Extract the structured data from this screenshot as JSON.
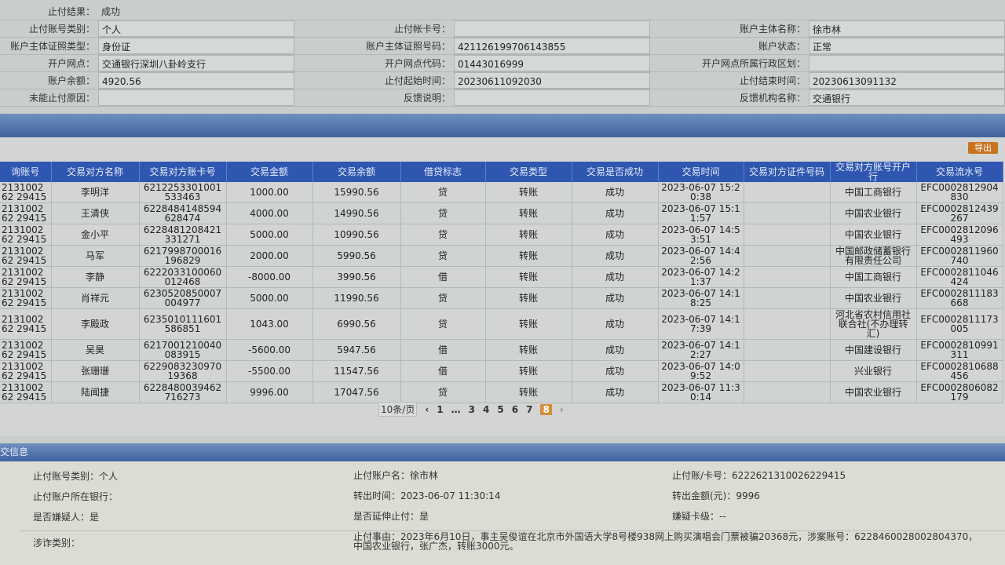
{
  "info": {
    "result_label": "止付结果：",
    "result_value": "成功",
    "rows": [
      [
        {
          "l": "止付账号类别：",
          "v": "个人"
        },
        {
          "l": "止付帐卡号：",
          "v": ""
        },
        {
          "l": "账户主体名称：",
          "v": "徐市林"
        }
      ],
      [
        {
          "l": "账户主体证照类型：",
          "v": "身份证"
        },
        {
          "l": "账户主体证照号码：",
          "v": "421126199706143855"
        },
        {
          "l": "账户状态：",
          "v": "正常"
        }
      ],
      [
        {
          "l": "开户网点：",
          "v": "交通银行深圳八卦岭支行"
        },
        {
          "l": "开户网点代码：",
          "v": "01443016999"
        },
        {
          "l": "开户网点所属行政区划：",
          "v": ""
        }
      ],
      [
        {
          "l": "账户余额：",
          "v": "4920.56"
        },
        {
          "l": "止付起始时间：",
          "v": "20230611092030"
        },
        {
          "l": "止付结束时间：",
          "v": "20230613091132"
        }
      ],
      [
        {
          "l": "未能止付原因：",
          "v": ""
        },
        {
          "l": "反馈说明：",
          "v": ""
        },
        {
          "l": "反馈机构名称：",
          "v": "交通银行"
        }
      ]
    ]
  },
  "export_label": "导出",
  "table": {
    "headers": [
      "询账号",
      "交易对方名称",
      "交易对方账卡号",
      "交易金额",
      "交易余额",
      "借贷标志",
      "交易类型",
      "交易是否成功",
      "交易时间",
      "交易对方证件号码",
      "交易对方账号开户行",
      "交易流水号"
    ],
    "rows": [
      [
        "213100262 29415",
        "李明洋",
        "6212253301001533463",
        "1000.00",
        "15990.56",
        "贷",
        "转账",
        "成功",
        "2023-06-07 15:20:38",
        "",
        "中国工商银行",
        "EFC0002812904830"
      ],
      [
        "213100262 29415",
        "王清侠",
        "6228484148594628474",
        "4000.00",
        "14990.56",
        "贷",
        "转账",
        "成功",
        "2023-06-07 15:11:57",
        "",
        "中国农业银行",
        "EFC0002812439267"
      ],
      [
        "213100262 29415",
        "金小平",
        "6228481208421331271",
        "5000.00",
        "10990.56",
        "贷",
        "转账",
        "成功",
        "2023-06-07 14:53:51",
        "",
        "中国农业银行",
        "EFC0002812096493"
      ],
      [
        "213100262 29415",
        "马军",
        "6217998700016196829",
        "2000.00",
        "5990.56",
        "贷",
        "转账",
        "成功",
        "2023-06-07 14:42:56",
        "",
        "中国邮政储蓄银行有限责任公司",
        "EFC0002811960740"
      ],
      [
        "213100262 29415",
        "李静",
        "6222033100060012468",
        "-8000.00",
        "3990.56",
        "借",
        "转账",
        "成功",
        "2023-06-07 14:21:37",
        "",
        "中国工商银行",
        "EFC0002811046424"
      ],
      [
        "213100262 29415",
        "肖祥元",
        "6230520850007004977",
        "5000.00",
        "11990.56",
        "贷",
        "转账",
        "成功",
        "2023-06-07 14:18:25",
        "",
        "中国农业银行",
        "EFC0002811183668"
      ],
      [
        "213100262 29415",
        "李殿政",
        "6235010111601586851",
        "1043.00",
        "6990.56",
        "贷",
        "转账",
        "成功",
        "2023-06-07 14:17:39",
        "",
        "河北省农村信用社联合社(不办理转汇)",
        "EFC0002811173005"
      ],
      [
        "213100262 29415",
        "吴昊",
        "6217001210040083915",
        "-5600.00",
        "5947.56",
        "借",
        "转账",
        "成功",
        "2023-06-07 14:12:27",
        "",
        "中国建设银行",
        "EFC0002810991311"
      ],
      [
        "213100262 29415",
        "张珊珊",
        "622908323097019368",
        "-5500.00",
        "11547.56",
        "借",
        "转账",
        "成功",
        "2023-06-07 14:09:52",
        "",
        "兴业银行",
        "EFC0002810688456"
      ],
      [
        "213100262 29415",
        "陆闻捷",
        "6228480039462716273",
        "9996.00",
        "17047.56",
        "贷",
        "转账",
        "成功",
        "2023-06-07 11:30:14",
        "",
        "中国农业银行",
        "EFC0002806082179"
      ]
    ]
  },
  "pager": {
    "page_size": "10条/页",
    "prev": "‹",
    "pages": [
      "1",
      "…",
      "3",
      "4",
      "5",
      "6",
      "7",
      "8"
    ],
    "current": "8",
    "next": "›"
  },
  "section_title": "交信息",
  "detail": {
    "account_type": "止付账号类别：个人",
    "account_name": "止付账户名：徐市林",
    "card_no": "止付账/卡号：6222621310026229415",
    "bank": "止付账户所在银行：",
    "out_time": "转出时间：2023-06-07 11:30:14",
    "out_amount": "转出金额(元)：9996",
    "suspect": "是否嫌疑人：是",
    "extend": "是否延伸止付：是",
    "card_level": "嫌疑卡级：--",
    "fraud_type": "涉诈类别：",
    "reason": "止付事由：2023年6月10日，事主吴俊谊在北京市外国语大学8号楼938网上购买演唱会门票被骗20368元，涉案账号：6228460028002804370，中国农业银行，张广杰，转账3000元。"
  }
}
